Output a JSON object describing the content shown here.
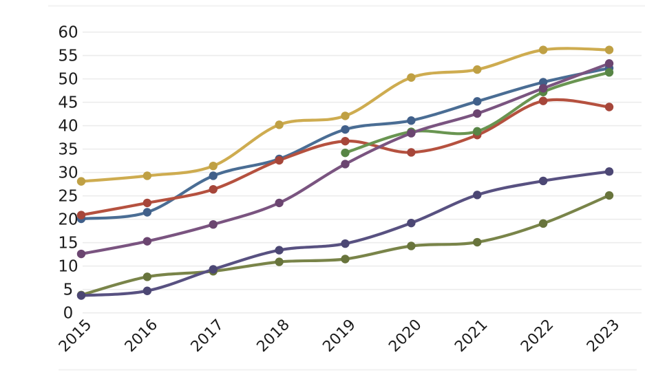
{
  "page": {
    "background": "#ffffff"
  },
  "chart_data": {
    "type": "line",
    "title": "",
    "xlabel": "",
    "ylabel": "",
    "x_labels": [
      "2015",
      "2016",
      "2017",
      "2018",
      "2019",
      "2020",
      "2021",
      "2022",
      "2023"
    ],
    "ylim": [
      0,
      60
    ],
    "ytick_step": 5,
    "grid": true,
    "legend": "none",
    "marker": "circle",
    "smooth": true,
    "series": [
      {
        "name": "steel-blue",
        "color": "#4a6d94",
        "dot_color": "#41608a",
        "values": [
          20.1,
          21.5,
          29.3,
          32.9,
          39.2,
          41.1,
          45.2,
          49.3,
          52.3
        ]
      },
      {
        "name": "brick-red",
        "color": "#b5513f",
        "dot_color": "#a6463a",
        "values": [
          20.9,
          23.5,
          26.4,
          32.6,
          36.7,
          34.3,
          38.0,
          45.3,
          44.0
        ]
      },
      {
        "name": "olive-green",
        "color": "#798449",
        "dot_color": "#68743c",
        "values": [
          3.8,
          7.7,
          8.9,
          10.9,
          11.5,
          14.3,
          15.1,
          19.1,
          25.1
        ]
      },
      {
        "name": "dark-slate-navy",
        "color": "#585181",
        "dot_color": "#4c4774",
        "values": [
          3.7,
          4.7,
          9.3,
          13.4,
          14.8,
          19.2,
          25.2,
          28.2,
          30.2
        ]
      },
      {
        "name": "medium-green",
        "color": "#699551",
        "dot_color": "#578545",
        "values": [
          null,
          null,
          null,
          null,
          34.2,
          38.7,
          38.8,
          47.2,
          51.4
        ]
      },
      {
        "name": "plum-purple",
        "color": "#7a5480",
        "dot_color": "#6b4570",
        "values": [
          12.6,
          15.3,
          18.9,
          23.5,
          31.8,
          38.4,
          42.6,
          48.0,
          53.3
        ]
      },
      {
        "name": "gold-yellow",
        "color": "#ceac50",
        "dot_color": "#bfa044",
        "values": [
          28.1,
          29.3,
          31.4,
          40.2,
          42.1,
          50.3,
          52.0,
          56.2,
          56.2
        ]
      }
    ],
    "colors": {
      "grid": "#ececec",
      "edge_artifact": "#f2f2f2",
      "text": "#1c1c1c",
      "background": "#ffffff"
    }
  }
}
